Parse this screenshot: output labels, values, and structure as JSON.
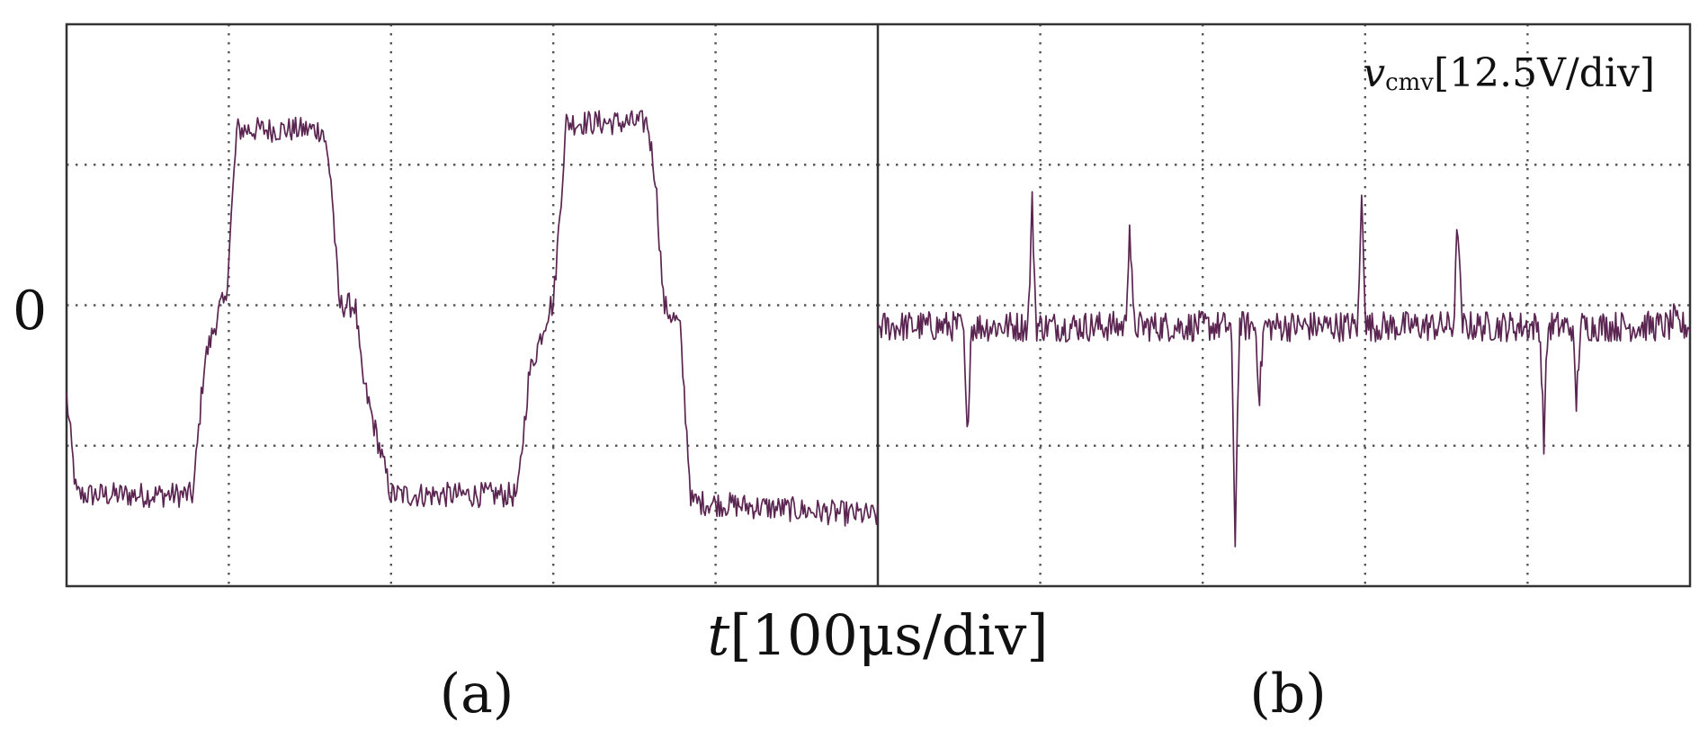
{
  "colors": {
    "trace": "#5a2550",
    "frame": "#333333",
    "grid": "#555555"
  },
  "chart_data": [
    {
      "type": "line",
      "panel_label": "(a)",
      "y_zero_label": "0",
      "x_divisions": 5,
      "y_divisions": 4,
      "xlim": [
        0,
        5
      ],
      "ylim": [
        -2,
        2
      ],
      "grid": true,
      "x": [
        0,
        0.06,
        0.78,
        0.85,
        0.95,
        0.98,
        1.05,
        1.58,
        1.63,
        1.68,
        1.78,
        1.82,
        2.0,
        2.78,
        2.85,
        2.98,
        3.0,
        3.08,
        3.58,
        3.63,
        3.68,
        3.78,
        3.85,
        5.0
      ],
      "values": [
        -0.65,
        -1.35,
        -1.35,
        -0.4,
        0,
        0,
        1.25,
        1.25,
        0.9,
        0.0,
        0.0,
        -0.5,
        -1.35,
        -1.35,
        -0.5,
        0,
        0,
        1.3,
        1.3,
        0.9,
        0.0,
        -0.15,
        -1.4,
        -1.5
      ],
      "noise_amplitude": 0.09
    },
    {
      "type": "line",
      "panel_label": "(b)",
      "series_label": {
        "symbol": "v",
        "subscript": "cmv",
        "scale": "[12.5V/div]"
      },
      "x_divisions": 5,
      "y_divisions": 4,
      "xlim": [
        0,
        5
      ],
      "ylim": [
        -2,
        2
      ],
      "grid": true,
      "baseline": -0.15,
      "noise_amplitude": 0.11,
      "spikes": [
        {
          "x": 0.55,
          "y": -0.95
        },
        {
          "x": 0.95,
          "y": 0.72
        },
        {
          "x": 1.55,
          "y": 0.58
        },
        {
          "x": 2.2,
          "y": -1.65
        },
        {
          "x": 2.35,
          "y": -0.65
        },
        {
          "x": 2.98,
          "y": 0.8
        },
        {
          "x": 3.57,
          "y": 0.62
        },
        {
          "x": 4.1,
          "y": -0.95
        },
        {
          "x": 4.3,
          "y": -0.7
        },
        {
          "x": 4.9,
          "y": -0.1
        }
      ]
    }
  ],
  "shared": {
    "xlabel_symbol": "t",
    "xlabel_scale": "[100μs/div]"
  }
}
